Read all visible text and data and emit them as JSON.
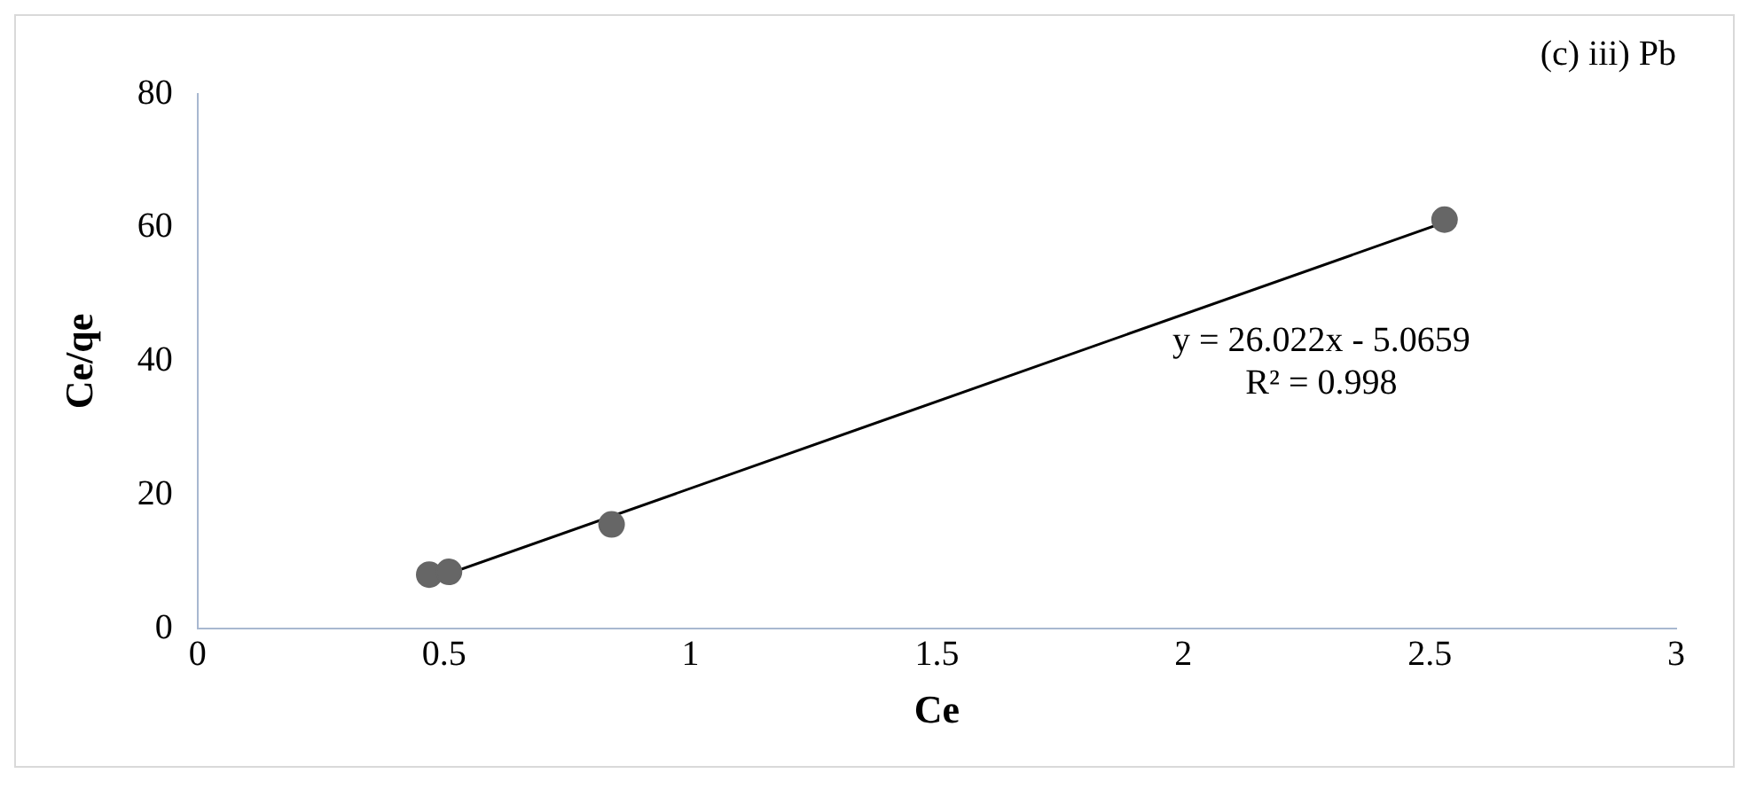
{
  "chart_data": {
    "type": "scatter",
    "title": "(c) iii) Pb",
    "xlabel": "Ce",
    "ylabel": "Ce/qe",
    "series": [
      {
        "type": "scatter",
        "color": "#666666",
        "marker": "circle",
        "x": [
          0.47,
          0.51,
          0.84,
          2.53
        ],
        "values": [
          8.1,
          8.5,
          15.6,
          61.2
        ]
      },
      {
        "type": "line",
        "color": "#000000",
        "marker": "none",
        "line_style": "solid",
        "x": [
          0.47,
          2.53
        ],
        "values": [
          7.2,
          60.8
        ]
      }
    ],
    "xlim": [
      0,
      3
    ],
    "xticks": [
      0,
      0.5,
      1,
      1.5,
      2,
      2.5,
      3
    ],
    "ylim": [
      0,
      80
    ],
    "yticks": [
      0,
      20,
      40,
      60,
      80
    ],
    "grid": false,
    "legend": false,
    "annotations": [
      "y = 26.022x - 5.0659",
      "R² = 0.998"
    ]
  }
}
